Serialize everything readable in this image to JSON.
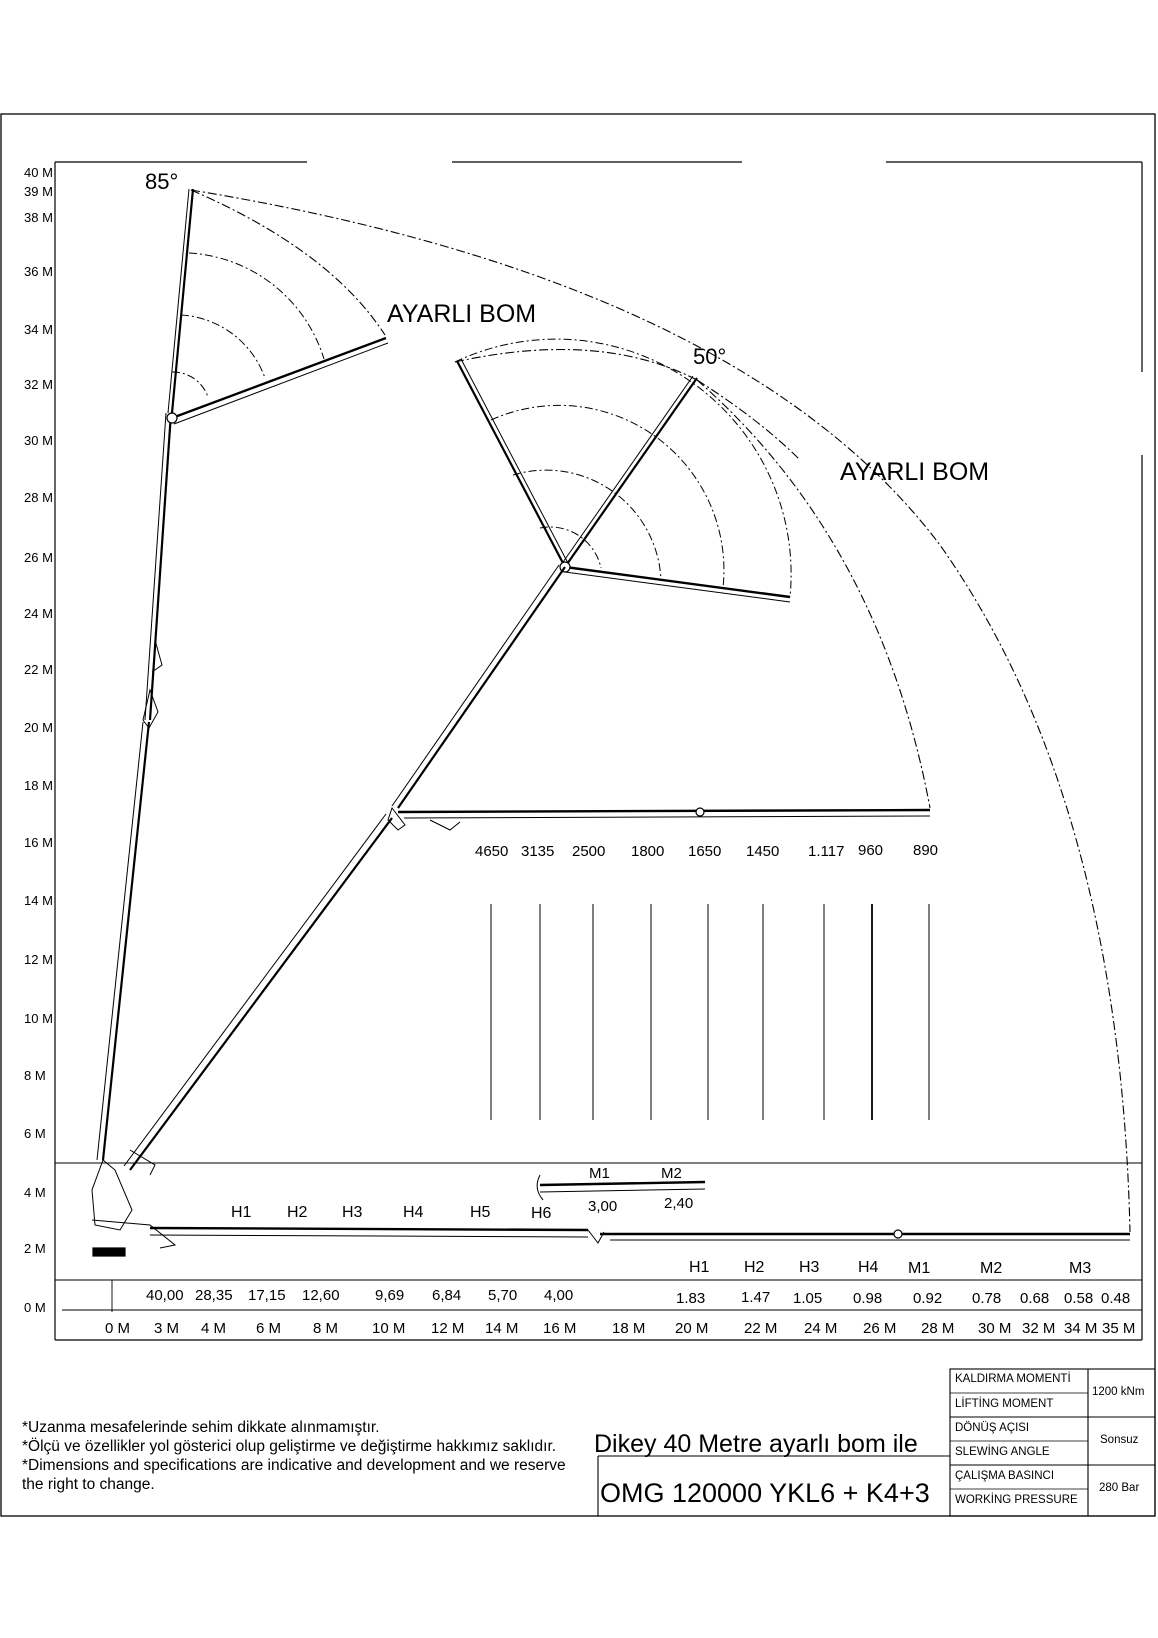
{
  "diagram": {
    "y_axis_labels": [
      "40 M",
      "39 M",
      "38 M",
      "36 M",
      "34 M",
      "32 M",
      "30 M",
      "28 M",
      "26 M",
      "24 M",
      "22 M",
      "20 M",
      "18 M",
      "16 M",
      "14 M",
      "12 M",
      "10 M",
      "8 M",
      "6 M",
      "4 M",
      "2 M",
      "0 M"
    ],
    "x_axis_labels": [
      "0 M",
      "3 M",
      "4 M",
      "6 M",
      "8 M",
      "10 M",
      "12 M",
      "14 M",
      "16 M",
      "18 M",
      "20 M",
      "22 M",
      "24 M",
      "26 M",
      "28 M",
      "30 M",
      "32 M",
      "34 M",
      "35 M"
    ],
    "angle_85": "85°",
    "angle_50": "50°",
    "adjustable_boom_label": "AYARLI BOM",
    "top_loads": [
      "4650",
      "3135",
      "2500",
      "1800",
      "1650",
      "1450",
      "1.117",
      "960",
      "890"
    ],
    "left_loads": [
      "40,00",
      "28,35",
      "17,15",
      "12,60",
      "9,69",
      "6,84",
      "5,70",
      "4,00"
    ],
    "right_loads": [
      "1.83",
      "1.47",
      "1.05",
      "0.98",
      "0.92",
      "0.78",
      "0.68",
      "0.58",
      "0.48"
    ],
    "h_labels_upper": [
      "H1",
      "H2",
      "H3",
      "H4",
      "H5",
      "H6"
    ],
    "h_labels_lower": [
      "H1",
      "H2",
      "H3",
      "H4",
      "M1",
      "M2",
      "M3"
    ],
    "m_labels": [
      "M1",
      "M2"
    ],
    "m_loads": [
      "3,00",
      "2,40"
    ]
  },
  "notes": [
    "*Uzanma mesafelerinde sehim dikkate alınmamıştır.",
    "*Ölçü ve özellikler yol gösterici olup geliştirme ve değiştirme hakkımız saklıdır.",
    "*Dimensions and specifications are indicative and development and we reserve",
    "the right to change."
  ],
  "title": {
    "line1": "Dikey 40 Metre ayarlı bom ile",
    "line2": "OMG 120000 YKL6 + K4+3"
  },
  "specs": [
    {
      "label_tr": "KALDIRMA MOMENTİ",
      "label_en": "LİFTİNG MOMENT",
      "value": "1200 kNm"
    },
    {
      "label_tr": "DÖNÜŞ AÇISI",
      "label_en": "SLEWİNG ANGLE",
      "value": "Sonsuz"
    },
    {
      "label_tr": "ÇALIŞMA BASINCI",
      "label_en": "WORKİNG PRESSURE",
      "value": "280 Bar"
    }
  ]
}
